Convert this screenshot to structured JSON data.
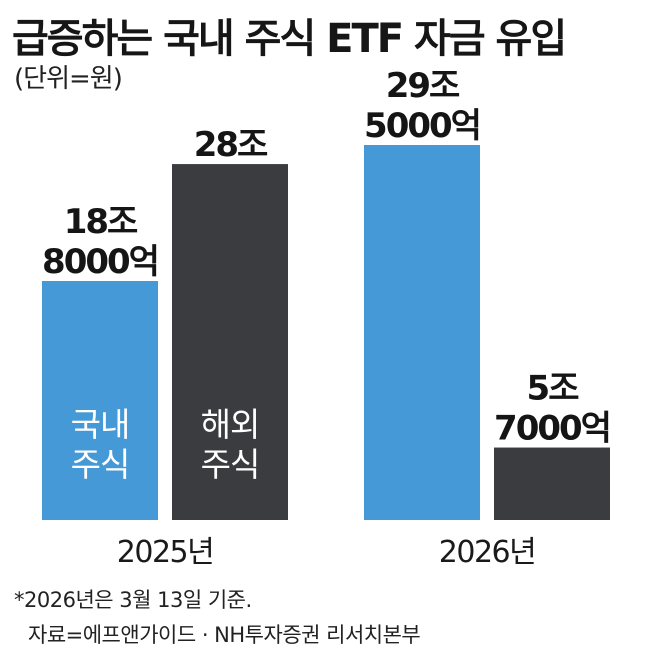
{
  "title": "급증하는 국내 주식 ETF 자금 유입",
  "unit_label": "(단위=원)",
  "footnote": "*2026년은 3월 13일 기준.",
  "source": "자료=에프앤가이드 · NH투자증권 리서치본부",
  "colors": {
    "domestic": "#4599d6",
    "overseas": "#3a3c3f"
  },
  "chart_data": {
    "type": "bar",
    "categories": [
      "2025년",
      "2026년"
    ],
    "series": [
      {
        "name": "국내 주식",
        "values": [
          188000,
          295000
        ],
        "labels": [
          "18조 8000억",
          "29조 5000억"
        ]
      },
      {
        "name": "해외 주식",
        "values": [
          280000,
          57000
        ],
        "labels": [
          "28조",
          "5조 7000억"
        ]
      }
    ],
    "value_unit": "억원",
    "inbar_labels": [
      "국내 주식",
      "해외 주식"
    ],
    "ylim": [
      0,
      295000
    ]
  }
}
